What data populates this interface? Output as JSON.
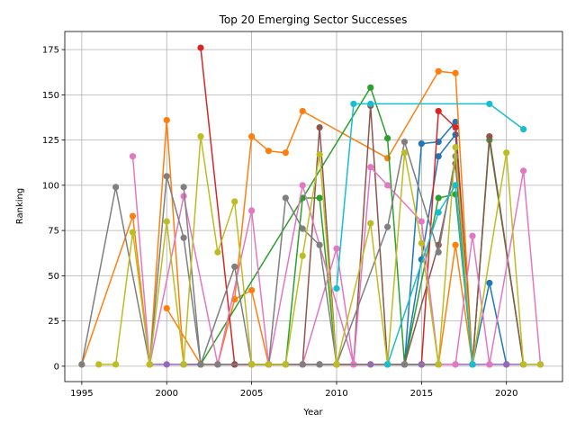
{
  "chart_data": {
    "type": "line",
    "title": "Top 20 Emerging Sector Successes",
    "xlabel": "Year",
    "ylabel": "Ranking",
    "xlim": [
      1994,
      2023.3
    ],
    "ylim": [
      -8.5,
      185
    ],
    "xticks": [
      1995,
      2000,
      2005,
      2010,
      2015,
      2020
    ],
    "yticks": [
      0,
      25,
      50,
      75,
      100,
      125,
      150,
      175
    ],
    "grid": true,
    "series": [
      {
        "color": "#1f77b4",
        "points": [
          [
            2013,
            1
          ],
          [
            2014,
            1
          ],
          [
            2015,
            123
          ],
          [
            2016,
            124
          ],
          [
            2017,
            135
          ],
          [
            2018,
            1
          ],
          [
            2019,
            46
          ],
          [
            2020,
            1
          ]
        ]
      },
      {
        "color": "#1f77b4",
        "points": [
          [
            2014,
            1
          ],
          [
            2015,
            59
          ],
          [
            2016,
            116
          ],
          [
            2017,
            128
          ],
          [
            2018,
            1
          ]
        ]
      },
      {
        "color": "#ff7f0e",
        "points": [
          [
            1995,
            1
          ],
          [
            1998,
            83
          ],
          [
            1999,
            1
          ],
          [
            2000,
            136
          ],
          [
            2001,
            1
          ],
          [
            2002,
            1
          ],
          [
            2003,
            1
          ]
        ]
      },
      {
        "color": "#ff7f0e",
        "points": [
          [
            2000,
            32
          ],
          [
            2002,
            1
          ],
          [
            2003,
            1
          ],
          [
            2004,
            37
          ],
          [
            2005,
            127
          ],
          [
            2006,
            119
          ],
          [
            2007,
            118
          ],
          [
            2008,
            141
          ],
          [
            2013,
            115
          ],
          [
            2016,
            163
          ],
          [
            2017,
            162
          ],
          [
            2018,
            1
          ]
        ]
      },
      {
        "color": "#ff7f0e",
        "points": [
          [
            2004,
            37
          ],
          [
            2005,
            42
          ],
          [
            2006,
            1
          ],
          [
            2012,
            1
          ],
          [
            2016,
            1
          ],
          [
            2017,
            67
          ],
          [
            2018,
            1
          ]
        ]
      },
      {
        "color": "#2ca02c",
        "points": [
          [
            2001,
            1
          ],
          [
            2002,
            1
          ],
          [
            2012,
            154
          ],
          [
            2013,
            126
          ],
          [
            2014,
            1
          ],
          [
            2016,
            93
          ],
          [
            2017,
            95
          ],
          [
            2018,
            1
          ],
          [
            2019,
            125
          ],
          [
            2021,
            1
          ]
        ]
      },
      {
        "color": "#2ca02c",
        "points": [
          [
            2006,
            1
          ],
          [
            2007,
            1
          ],
          [
            2008,
            93
          ],
          [
            2009,
            93
          ],
          [
            2010,
            1
          ],
          [
            2015,
            1
          ]
        ]
      },
      {
        "color": "#d62728",
        "points": [
          [
            2002,
            176
          ],
          [
            2004,
            1
          ],
          [
            2005,
            1
          ],
          [
            2006,
            1
          ],
          [
            2008,
            1
          ],
          [
            2009,
            1
          ],
          [
            2010,
            1
          ],
          [
            2015,
            1
          ],
          [
            2016,
            141
          ],
          [
            2017,
            132
          ],
          [
            2018,
            1
          ]
        ]
      },
      {
        "color": "#9467bd",
        "points": [
          [
            1999,
            1
          ],
          [
            2000,
            1
          ],
          [
            2001,
            1
          ],
          [
            2002,
            1
          ],
          [
            2003,
            1
          ],
          [
            2004,
            1
          ],
          [
            2005,
            1
          ],
          [
            2006,
            1
          ],
          [
            2007,
            1
          ],
          [
            2008,
            1
          ],
          [
            2009,
            1
          ],
          [
            2010,
            1
          ],
          [
            2011,
            1
          ],
          [
            2012,
            1
          ],
          [
            2013,
            1
          ],
          [
            2014,
            1
          ],
          [
            2015,
            1
          ],
          [
            2016,
            1
          ],
          [
            2017,
            1
          ],
          [
            2018,
            1
          ],
          [
            2019,
            1
          ],
          [
            2020,
            1
          ],
          [
            2021,
            1
          ],
          [
            2022,
            1
          ]
        ]
      },
      {
        "color": "#8c564b",
        "points": [
          [
            2003,
            1
          ],
          [
            2004,
            1
          ],
          [
            2005,
            1
          ],
          [
            2006,
            1
          ],
          [
            2007,
            1
          ],
          [
            2008,
            1
          ],
          [
            2009,
            132
          ],
          [
            2010,
            1
          ],
          [
            2011,
            1
          ],
          [
            2012,
            144
          ],
          [
            2013,
            1
          ],
          [
            2014,
            1
          ],
          [
            2016,
            67
          ],
          [
            2017,
            112
          ],
          [
            2018,
            1
          ],
          [
            2019,
            127
          ],
          [
            2021,
            1
          ]
        ]
      },
      {
        "color": "#e377c2",
        "points": [
          [
            1998,
            116
          ],
          [
            1999,
            1
          ],
          [
            2001,
            94
          ],
          [
            2003,
            1
          ],
          [
            2005,
            86
          ],
          [
            2006,
            1
          ],
          [
            2008,
            100
          ],
          [
            2011,
            1
          ],
          [
            2012,
            110
          ],
          [
            2013,
            100
          ],
          [
            2015,
            80
          ],
          [
            2016,
            1
          ],
          [
            2017,
            1
          ],
          [
            2018,
            72
          ],
          [
            2019,
            1
          ],
          [
            2021,
            108
          ],
          [
            2022,
            1
          ]
        ]
      },
      {
        "color": "#e377c2",
        "points": [
          [
            2003,
            1
          ],
          [
            2008,
            1
          ],
          [
            2010,
            65
          ],
          [
            2011,
            1
          ],
          [
            2014,
            1
          ],
          [
            2016,
            1
          ]
        ]
      },
      {
        "color": "#7f7f7f",
        "points": [
          [
            1995,
            1
          ],
          [
            1997,
            99
          ],
          [
            1999,
            1
          ],
          [
            2000,
            105
          ],
          [
            2001,
            71
          ],
          [
            2002,
            1
          ],
          [
            2004,
            55
          ],
          [
            2005,
            1
          ],
          [
            2006,
            1
          ],
          [
            2007,
            93
          ],
          [
            2008,
            76
          ],
          [
            2009,
            67
          ],
          [
            2010,
            1
          ],
          [
            2013,
            77
          ],
          [
            2014,
            124
          ],
          [
            2016,
            63
          ],
          [
            2017,
            116
          ],
          [
            2018,
            1
          ]
        ]
      },
      {
        "color": "#7f7f7f",
        "points": [
          [
            2001,
            99
          ],
          [
            2002,
            1
          ],
          [
            2003,
            1
          ],
          [
            2007,
            1
          ],
          [
            2008,
            1
          ],
          [
            2009,
            1
          ],
          [
            2014,
            1
          ],
          [
            2016,
            1
          ]
        ]
      },
      {
        "color": "#bcbd22",
        "points": [
          [
            1996,
            1
          ],
          [
            1997,
            1
          ],
          [
            1998,
            74
          ],
          [
            1999,
            1
          ],
          [
            2000,
            80
          ],
          [
            2001,
            1
          ],
          [
            2002,
            127
          ],
          [
            2003,
            63
          ],
          [
            2004,
            91
          ],
          [
            2005,
            1
          ],
          [
            2006,
            1
          ],
          [
            2007,
            1
          ],
          [
            2008,
            61
          ],
          [
            2009,
            117
          ],
          [
            2010,
            1
          ],
          [
            2012,
            79
          ],
          [
            2013,
            1
          ],
          [
            2014,
            118
          ],
          [
            2015,
            68
          ],
          [
            2016,
            1
          ],
          [
            2017,
            121
          ],
          [
            2018,
            1
          ],
          [
            2020,
            118
          ],
          [
            2021,
            1
          ],
          [
            2022,
            1
          ]
        ]
      },
      {
        "color": "#17becf",
        "points": [
          [
            2010,
            43
          ],
          [
            2011,
            145
          ],
          [
            2012,
            145
          ],
          [
            2019,
            145
          ],
          [
            2021,
            131
          ]
        ]
      },
      {
        "color": "#17becf",
        "points": [
          [
            2013,
            1
          ],
          [
            2016,
            85
          ],
          [
            2017,
            100
          ],
          [
            2018,
            1
          ]
        ]
      }
    ]
  }
}
